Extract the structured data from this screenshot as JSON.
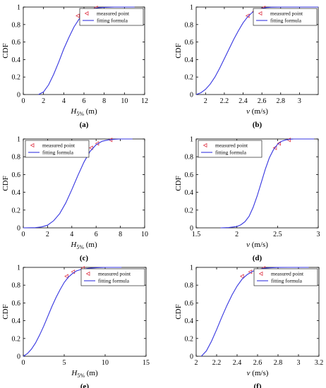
{
  "colors": {
    "curve": "#3535e0",
    "marker": "#e0394a",
    "axis": "#000000",
    "background": "#ffffff"
  },
  "chart_data": [
    {
      "type": "line",
      "panel_label": "(a)",
      "xlabel": {
        "base": "H",
        "sub": "5%",
        "rest": " (m)"
      },
      "ylabel": "CDF",
      "xlim": [
        0,
        12
      ],
      "ylim": [
        0,
        1
      ],
      "xticks": [
        0,
        2,
        4,
        6,
        8,
        10,
        12
      ],
      "xtick_labels": [
        "0",
        "2",
        "4",
        "6",
        "8",
        "10",
        "12"
      ],
      "yticks": [
        0,
        0.2,
        0.4,
        0.6,
        0.8,
        1
      ],
      "ytick_labels": [
        "0",
        "0.2",
        "0.4",
        "0.6",
        "0.8",
        "1"
      ],
      "grid": false,
      "legend_position": "top-right",
      "legend": [
        "measured point",
        "fitting formula"
      ],
      "series": [
        {
          "name": "measured point",
          "style": "markers",
          "x": [
            5.4,
            6.1,
            7.2
          ],
          "y": [
            0.9,
            0.95,
            0.99
          ]
        },
        {
          "name": "fitting formula",
          "style": "line",
          "x": [
            1.5,
            2,
            2.5,
            3,
            3.5,
            4,
            4.5,
            5,
            5.5,
            6,
            6.5,
            7,
            7.5,
            8,
            9,
            10,
            11
          ],
          "y": [
            0,
            0.03,
            0.11,
            0.23,
            0.37,
            0.52,
            0.65,
            0.77,
            0.86,
            0.925,
            0.963,
            0.983,
            0.993,
            0.997,
            1,
            1,
            1
          ]
        }
      ]
    },
    {
      "type": "line",
      "panel_label": "(b)",
      "xlabel": {
        "base": "v",
        "sub": "",
        "rest": " (m/s)"
      },
      "ylabel": "CDF",
      "xlim": [
        1.9,
        3.2
      ],
      "ylim": [
        0,
        1
      ],
      "xticks": [
        2,
        2.2,
        2.4,
        2.6,
        2.8,
        3
      ],
      "xtick_labels": [
        "2",
        "2.2",
        "2.4",
        "2.6",
        "2.8",
        "3"
      ],
      "yticks": [
        0,
        0.2,
        0.4,
        0.6,
        0.8,
        1
      ],
      "ytick_labels": [
        "0",
        "0.2",
        "0.4",
        "0.6",
        "0.8",
        "1"
      ],
      "grid": false,
      "legend_position": "top-right",
      "legend": [
        "measured point",
        "fitting formula"
      ],
      "series": [
        {
          "name": "measured point",
          "style": "markers",
          "x": [
            2.45,
            2.52,
            2.62
          ],
          "y": [
            0.9,
            0.95,
            0.99
          ]
        },
        {
          "name": "fitting formula",
          "style": "line",
          "x": [
            1.9,
            1.95,
            2,
            2.05,
            2.1,
            2.15,
            2.2,
            2.25,
            2.3,
            2.35,
            2.4,
            2.45,
            2.5,
            2.55,
            2.6,
            2.65,
            2.7,
            2.8,
            2.9,
            3.2
          ],
          "y": [
            0,
            0.02,
            0.06,
            0.12,
            0.2,
            0.3,
            0.41,
            0.52,
            0.63,
            0.73,
            0.82,
            0.89,
            0.94,
            0.97,
            0.985,
            0.994,
            0.998,
            1,
            1,
            1
          ]
        }
      ]
    },
    {
      "type": "line",
      "panel_label": "(c)",
      "xlabel": {
        "base": "H",
        "sub": "5%",
        "rest": " (m)"
      },
      "ylabel": "CDF",
      "xlim": [
        0,
        10
      ],
      "ylim": [
        0,
        1
      ],
      "xticks": [
        0,
        2,
        4,
        6,
        8,
        10
      ],
      "xtick_labels": [
        "0",
        "2",
        "4",
        "6",
        "8",
        "10"
      ],
      "yticks": [
        0,
        0.2,
        0.4,
        0.6,
        0.8,
        1
      ],
      "ytick_labels": [
        "0",
        "0.2",
        "0.4",
        "0.6",
        "0.8",
        "1"
      ],
      "grid": false,
      "legend_position": "top-left",
      "legend": [
        "measured point",
        "fitting formula"
      ],
      "series": [
        {
          "name": "measured point",
          "style": "markers",
          "x": [
            5.6,
            6.1,
            7.2
          ],
          "y": [
            0.9,
            0.95,
            0.99
          ]
        },
        {
          "name": "fitting formula",
          "style": "line",
          "x": [
            0,
            1,
            1.5,
            2,
            2.5,
            3,
            3.5,
            4,
            4.5,
            5,
            5.5,
            6,
            6.5,
            7,
            7.5,
            8,
            9
          ],
          "y": [
            0,
            0.002,
            0.01,
            0.03,
            0.08,
            0.16,
            0.28,
            0.43,
            0.59,
            0.74,
            0.86,
            0.935,
            0.975,
            0.99,
            0.997,
            1,
            1
          ]
        }
      ]
    },
    {
      "type": "line",
      "panel_label": "(d)",
      "xlabel": {
        "base": "v",
        "sub": "",
        "rest": " (m/s)"
      },
      "ylabel": "CDF",
      "xlim": [
        1.5,
        3
      ],
      "ylim": [
        0,
        1
      ],
      "xticks": [
        1.5,
        2,
        2.5,
        3
      ],
      "xtick_labels": [
        "1.5",
        "2",
        "2.5",
        "3"
      ],
      "yticks": [
        0,
        0.2,
        0.4,
        0.6,
        0.8,
        1
      ],
      "ytick_labels": [
        "0",
        "0.2",
        "0.4",
        "0.6",
        "0.8",
        "1"
      ],
      "grid": false,
      "legend_position": "top-left",
      "legend": [
        "measured point",
        "fitting formula"
      ],
      "series": [
        {
          "name": "measured point",
          "style": "markers",
          "x": [
            2.47,
            2.52,
            2.64
          ],
          "y": [
            0.9,
            0.95,
            0.99
          ]
        },
        {
          "name": "fitting formula",
          "style": "line",
          "x": [
            1.8,
            1.9,
            2,
            2.05,
            2.1,
            2.15,
            2.2,
            2.25,
            2.3,
            2.35,
            2.4,
            2.45,
            2.5,
            2.55,
            2.6,
            2.65,
            2.7,
            2.8,
            2.95
          ],
          "y": [
            0,
            0.003,
            0.015,
            0.035,
            0.07,
            0.13,
            0.23,
            0.36,
            0.51,
            0.66,
            0.79,
            0.88,
            0.94,
            0.975,
            0.99,
            0.997,
            1,
            1,
            1
          ]
        }
      ]
    },
    {
      "type": "line",
      "panel_label": "(e)",
      "xlabel": {
        "base": "H",
        "sub": "5%",
        "rest": " (m)"
      },
      "ylabel": "CDF",
      "xlim": [
        0,
        15
      ],
      "ylim": [
        0,
        1
      ],
      "xticks": [
        0,
        5,
        10,
        15
      ],
      "xtick_labels": [
        "0",
        "5",
        "10",
        "15"
      ],
      "yticks": [
        0,
        0.2,
        0.4,
        0.6,
        0.8,
        1
      ],
      "ytick_labels": [
        "0",
        "0.2",
        "0.4",
        "0.6",
        "0.8",
        "1"
      ],
      "grid": false,
      "legend_position": "top-right",
      "legend": [
        "measured point",
        "fitting formula"
      ],
      "series": [
        {
          "name": "measured point",
          "style": "markers",
          "x": [
            5.3,
            6.1,
            7.3
          ],
          "y": [
            0.9,
            0.95,
            0.99
          ]
        },
        {
          "name": "fitting formula",
          "style": "line",
          "x": [
            0,
            0.5,
            1,
            1.5,
            2,
            2.5,
            3,
            3.5,
            4,
            4.5,
            5,
            5.5,
            6,
            6.5,
            7,
            8,
            9,
            10,
            11,
            12
          ],
          "y": [
            0,
            0.03,
            0.08,
            0.15,
            0.24,
            0.34,
            0.45,
            0.56,
            0.66,
            0.75,
            0.83,
            0.89,
            0.93,
            0.96,
            0.975,
            0.99,
            0.997,
            1,
            1,
            1
          ]
        }
      ]
    },
    {
      "type": "line",
      "panel_label": "(f)",
      "xlabel": {
        "base": "v",
        "sub": "",
        "rest": " (m/s)"
      },
      "ylabel": "CDF",
      "xlim": [
        2,
        3.2
      ],
      "ylim": [
        0,
        1
      ],
      "xticks": [
        2,
        2.2,
        2.4,
        2.6,
        2.8,
        3,
        3.2
      ],
      "xtick_labels": [
        "2",
        "2.2",
        "2.4",
        "2.6",
        "2.8",
        "3",
        "3.2"
      ],
      "yticks": [
        0,
        0.2,
        0.4,
        0.6,
        0.8,
        1
      ],
      "ytick_labels": [
        "0",
        "0.2",
        "0.4",
        "0.6",
        "0.8",
        "1"
      ],
      "grid": false,
      "legend_position": "top-right",
      "legend": [
        "measured point",
        "fitting formula"
      ],
      "series": [
        {
          "name": "measured point",
          "style": "markers",
          "x": [
            2.45,
            2.53,
            2.66
          ],
          "y": [
            0.9,
            0.95,
            0.99
          ]
        },
        {
          "name": "fitting formula",
          "style": "line",
          "x": [
            2.05,
            2.1,
            2.15,
            2.2,
            2.25,
            2.3,
            2.35,
            2.4,
            2.45,
            2.5,
            2.55,
            2.6,
            2.65,
            2.7,
            2.8,
            2.9,
            3.1
          ],
          "y": [
            0,
            0.06,
            0.17,
            0.3,
            0.44,
            0.57,
            0.69,
            0.79,
            0.87,
            0.92,
            0.955,
            0.975,
            0.987,
            0.994,
            0.999,
            1,
            1
          ]
        }
      ]
    }
  ]
}
